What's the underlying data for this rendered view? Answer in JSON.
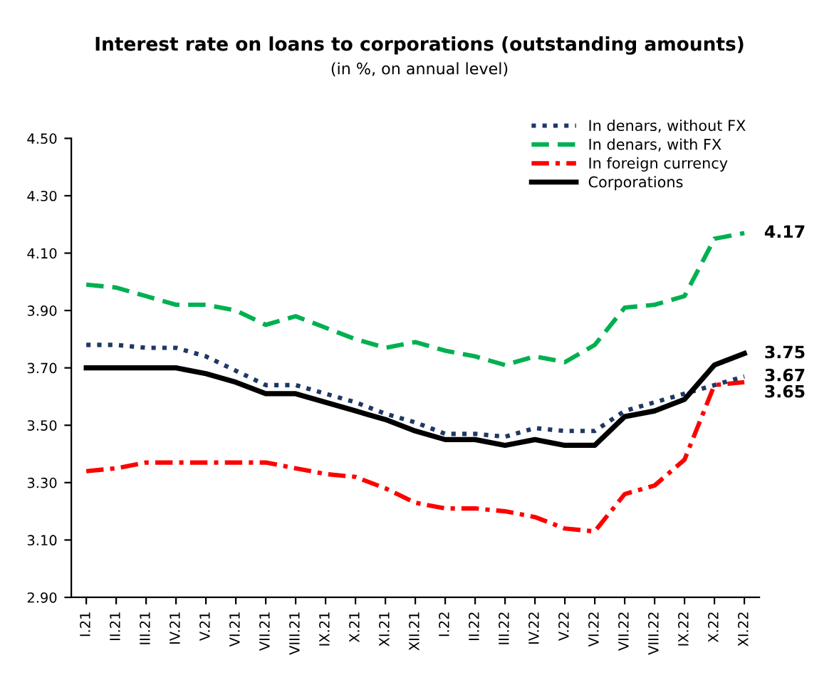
{
  "chart_data": {
    "type": "line",
    "title": "Interest rate on loans to corporations (outstanding amounts)",
    "subtitle": "(in %, on annual level)",
    "categories": [
      "I.21",
      "II.21",
      "III.21",
      "IV.21",
      "V.21",
      "VI.21",
      "VII.21",
      "VIII.21",
      "IX.21",
      "X.21",
      "XI.21",
      "XII.21",
      "I.22",
      "II.22",
      "III.22",
      "IV.22",
      "V.22",
      "VI.22",
      "VII.22",
      "VIII.22",
      "IX.22",
      "X.22",
      "XI.22"
    ],
    "series": [
      {
        "name": "In denars, without FX",
        "color": "#1f3864",
        "line_style": "dotted",
        "values": [
          3.78,
          3.78,
          3.77,
          3.77,
          3.74,
          3.69,
          3.64,
          3.64,
          3.61,
          3.58,
          3.54,
          3.51,
          3.47,
          3.47,
          3.46,
          3.49,
          3.48,
          3.48,
          3.55,
          3.58,
          3.61,
          3.64,
          3.67
        ],
        "value_labels": [
          null,
          null,
          null,
          null,
          null,
          null,
          null,
          null,
          null,
          null,
          null,
          null,
          null,
          null,
          null,
          null,
          null,
          null,
          null,
          null,
          null,
          null,
          "3.67"
        ]
      },
      {
        "name": "In denars, with FX",
        "color": "#00b050",
        "line_style": "dashed",
        "values": [
          3.99,
          3.98,
          3.95,
          3.92,
          3.92,
          3.9,
          3.85,
          3.88,
          3.84,
          3.8,
          3.77,
          3.79,
          3.76,
          3.74,
          3.71,
          3.74,
          3.72,
          3.78,
          3.91,
          3.92,
          3.95,
          4.15,
          4.17
        ],
        "value_labels": [
          null,
          null,
          null,
          null,
          null,
          null,
          null,
          null,
          null,
          null,
          null,
          null,
          null,
          null,
          null,
          null,
          null,
          null,
          null,
          null,
          null,
          null,
          "4.17"
        ]
      },
      {
        "name": "In foreign currency",
        "color": "#ff0000",
        "line_style": "dashdot",
        "values": [
          3.34,
          3.35,
          3.37,
          3.37,
          3.37,
          3.37,
          3.37,
          3.35,
          3.33,
          3.32,
          3.28,
          3.23,
          3.21,
          3.21,
          3.2,
          3.18,
          3.14,
          3.13,
          3.26,
          3.29,
          3.38,
          3.64,
          3.65
        ],
        "value_labels": [
          null,
          null,
          null,
          null,
          null,
          null,
          null,
          null,
          null,
          null,
          null,
          null,
          null,
          null,
          null,
          null,
          null,
          null,
          null,
          null,
          null,
          null,
          "3.65"
        ]
      },
      {
        "name": "Corporations",
        "color": "#000000",
        "line_style": "solid",
        "values": [
          3.7,
          3.7,
          3.7,
          3.7,
          3.68,
          3.65,
          3.61,
          3.61,
          3.58,
          3.55,
          3.52,
          3.48,
          3.45,
          3.45,
          3.43,
          3.45,
          3.43,
          3.43,
          3.53,
          3.55,
          3.59,
          3.71,
          3.75
        ],
        "value_labels": [
          null,
          null,
          null,
          null,
          null,
          null,
          null,
          null,
          null,
          null,
          null,
          null,
          null,
          null,
          null,
          null,
          null,
          null,
          null,
          null,
          null,
          null,
          "3.75"
        ]
      }
    ],
    "ylim": [
      2.9,
      4.5
    ],
    "yticks": [
      {
        "value": 2.9,
        "label": "2.90"
      },
      {
        "value": 3.1,
        "label": "3.10"
      },
      {
        "value": 3.3,
        "label": "3.30"
      },
      {
        "value": 3.5,
        "label": "3.50"
      },
      {
        "value": 3.7,
        "label": "3.70"
      },
      {
        "value": 3.9,
        "label": "3.90"
      },
      {
        "value": 4.1,
        "label": "4.10"
      },
      {
        "value": 4.3,
        "label": "4.30"
      },
      {
        "value": 4.5,
        "label": "4.50"
      }
    ],
    "grid": false,
    "legend": "top right",
    "marker": "none"
  }
}
